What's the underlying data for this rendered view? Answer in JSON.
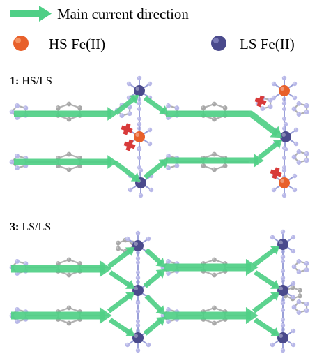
{
  "legend": {
    "arrow_label": "Main current direction",
    "hs_label": "HS Fe(II)",
    "ls_label": "LS Fe(II)",
    "arrow_color": "#4fcf86",
    "hs_color": "#e8602a",
    "ls_color": "#4a4a8c"
  },
  "panels": [
    {
      "id": "panel-1",
      "number": "1:",
      "label": "HS/LS"
    },
    {
      "id": "panel-3",
      "number": "3:",
      "label": "LS/LS"
    }
  ],
  "colors": {
    "ligand_carbon": "#a8a8a8",
    "ligand_nitrogen": "#b8b8e8",
    "marker": "#d83a3a"
  }
}
